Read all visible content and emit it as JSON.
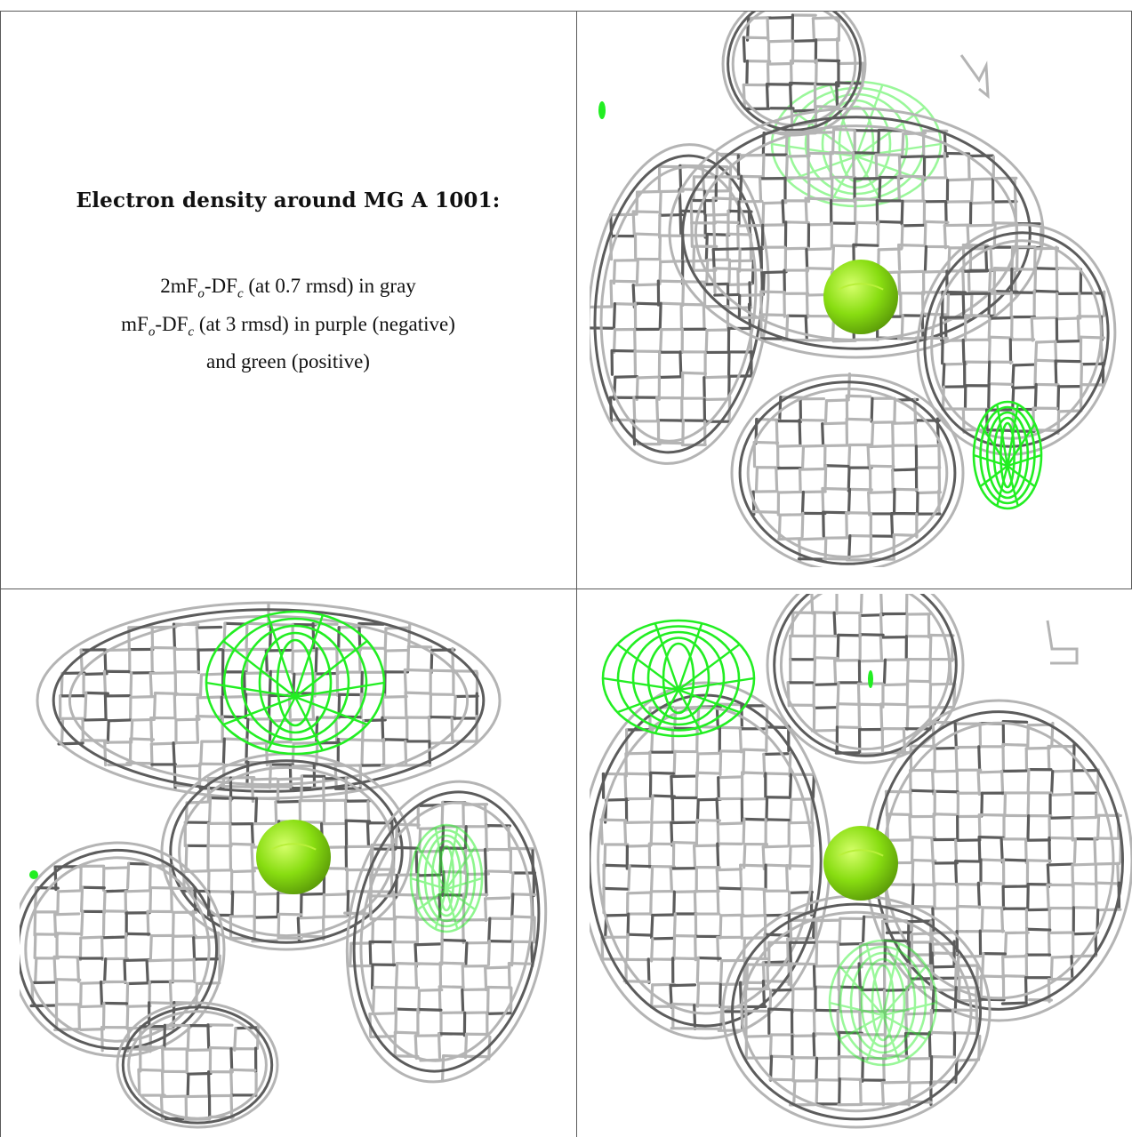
{
  "caption": {
    "title": "Electron density around MG A 1001:",
    "line1": {
      "a": "2mF",
      "sub1": "o",
      "b": "-DF",
      "sub2": "c",
      "c": " (at 0.7 rmsd) in gray"
    },
    "line2": {
      "a": "mF",
      "sub1": "o",
      "b": "-DF",
      "sub2": "c",
      "c": " (at 3 rmsd) in purple (negative)"
    },
    "line3": "and green (positive)"
  },
  "colors": {
    "mesh_gray": "#b4b4b4",
    "mesh_dark": "#5c5c5c",
    "mesh_green": "#22ee22",
    "ion": "#88dd11",
    "border": "#5a5a5a"
  },
  "panels": [
    {
      "view": "top-right",
      "atom": "MG A 1001"
    },
    {
      "view": "bottom-left",
      "atom": "MG A 1001"
    },
    {
      "view": "bottom-right",
      "atom": "MG A 1001"
    }
  ]
}
